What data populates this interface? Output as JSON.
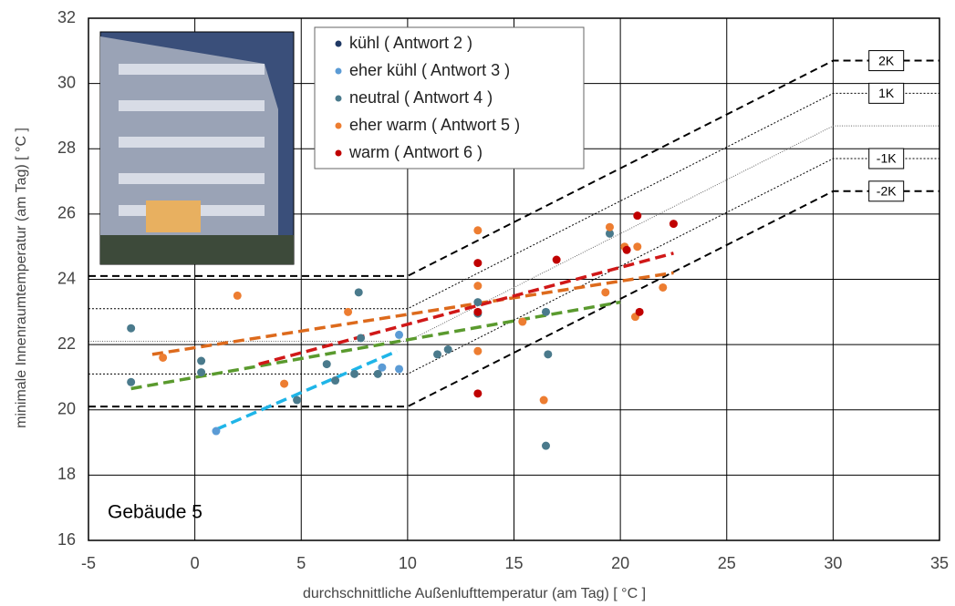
{
  "chart_data": {
    "type": "scatter",
    "x_label": "durchschnittliche Außenlufttemperatur (am Tag) [ °C ]",
    "y_label": "minimale Innenraumtemperatur (am Tag) [ °C ]",
    "annotation": "Gebäude 5",
    "xlim": [
      -5,
      35
    ],
    "ylim": [
      16,
      32
    ],
    "xticks": [
      -5,
      0,
      5,
      10,
      15,
      20,
      25,
      30,
      35
    ],
    "yticks": [
      16,
      18,
      20,
      22,
      24,
      26,
      28,
      30,
      32
    ],
    "grid": true,
    "legend": "top",
    "series": [
      {
        "name": "kühl ( Antwort 2 )",
        "color": "#1f3864",
        "x": [],
        "values": []
      },
      {
        "name": "eher kühl ( Antwort 3 )",
        "color": "#5b9bd5",
        "x": [
          1,
          9.6,
          9.6,
          8.8
        ],
        "values": [
          19.35,
          22.3,
          21.25,
          21.3
        ]
      },
      {
        "name": "neutral ( Antwort 4 )",
        "color": "#4a7a8c",
        "x": [
          -3,
          -3,
          0.3,
          0.3,
          4.8,
          6.2,
          6.6,
          7.5,
          7.7,
          7.8,
          8.6,
          11.4,
          11.9,
          13.3,
          13.3,
          16.5,
          16.6,
          16.5,
          19.5
        ],
        "values": [
          22.5,
          20.85,
          21.5,
          21.15,
          20.3,
          21.4,
          20.9,
          21.1,
          23.6,
          22.2,
          21.1,
          21.7,
          21.85,
          23.3,
          22.95,
          23.0,
          21.7,
          18.9,
          25.4
        ]
      },
      {
        "name": "eher warm ( Antwort 5 )",
        "color": "#ed7d31",
        "x": [
          -1.5,
          2,
          4.2,
          7.2,
          13.3,
          13.3,
          13.3,
          15.4,
          16.4,
          19.3,
          19.5,
          20.2,
          20.8,
          20.7,
          22
        ],
        "values": [
          21.6,
          23.5,
          20.8,
          23.0,
          25.5,
          23.8,
          21.8,
          22.7,
          20.3,
          23.6,
          25.6,
          25.0,
          25.0,
          22.85,
          23.75
        ]
      },
      {
        "name": "warm ( Antwort 6 )",
        "color": "#c00000",
        "x": [
          13.3,
          13.3,
          13.3,
          17,
          20.3,
          20.8,
          20.9,
          22.5
        ],
        "values": [
          24.5,
          23.0,
          20.5,
          24.6,
          24.9,
          25.95,
          23.0,
          25.7
        ]
      }
    ],
    "trendlines": [
      {
        "color": "#1fb5e8",
        "x": [
          1,
          9.5
        ],
        "y": [
          19.4,
          21.8
        ]
      },
      {
        "color": "#5a9a2e",
        "x": [
          -3,
          20
        ],
        "y": [
          20.65,
          23.3
        ]
      },
      {
        "color": "#dd6a1c",
        "x": [
          -2,
          22.5
        ],
        "y": [
          21.7,
          24.2
        ]
      },
      {
        "color": "#d01818",
        "x": [
          3,
          22.5
        ],
        "y": [
          21.4,
          24.8
        ]
      }
    ],
    "comfort_lines": [
      {
        "name": "2K",
        "style": "dashed",
        "x": [
          -5,
          10,
          30,
          35
        ],
        "y": [
          24.1,
          24.1,
          30.7,
          30.7
        ]
      },
      {
        "name": "1K",
        "style": "dotted",
        "x": [
          -5,
          10,
          30,
          35
        ],
        "y": [
          23.1,
          23.1,
          29.7,
          29.7
        ]
      },
      {
        "style": "thin",
        "x": [
          -5,
          10,
          30,
          35
        ],
        "y": [
          22.1,
          22.1,
          28.7,
          28.7
        ]
      },
      {
        "name": "-1K",
        "style": "dotted",
        "x": [
          -5,
          10,
          30,
          35
        ],
        "y": [
          21.1,
          21.1,
          27.7,
          27.7
        ]
      },
      {
        "name": "-2K",
        "style": "dashed",
        "x": [
          -5,
          10,
          30,
          35
        ],
        "y": [
          20.1,
          20.1,
          26.7,
          26.7
        ]
      }
    ]
  }
}
